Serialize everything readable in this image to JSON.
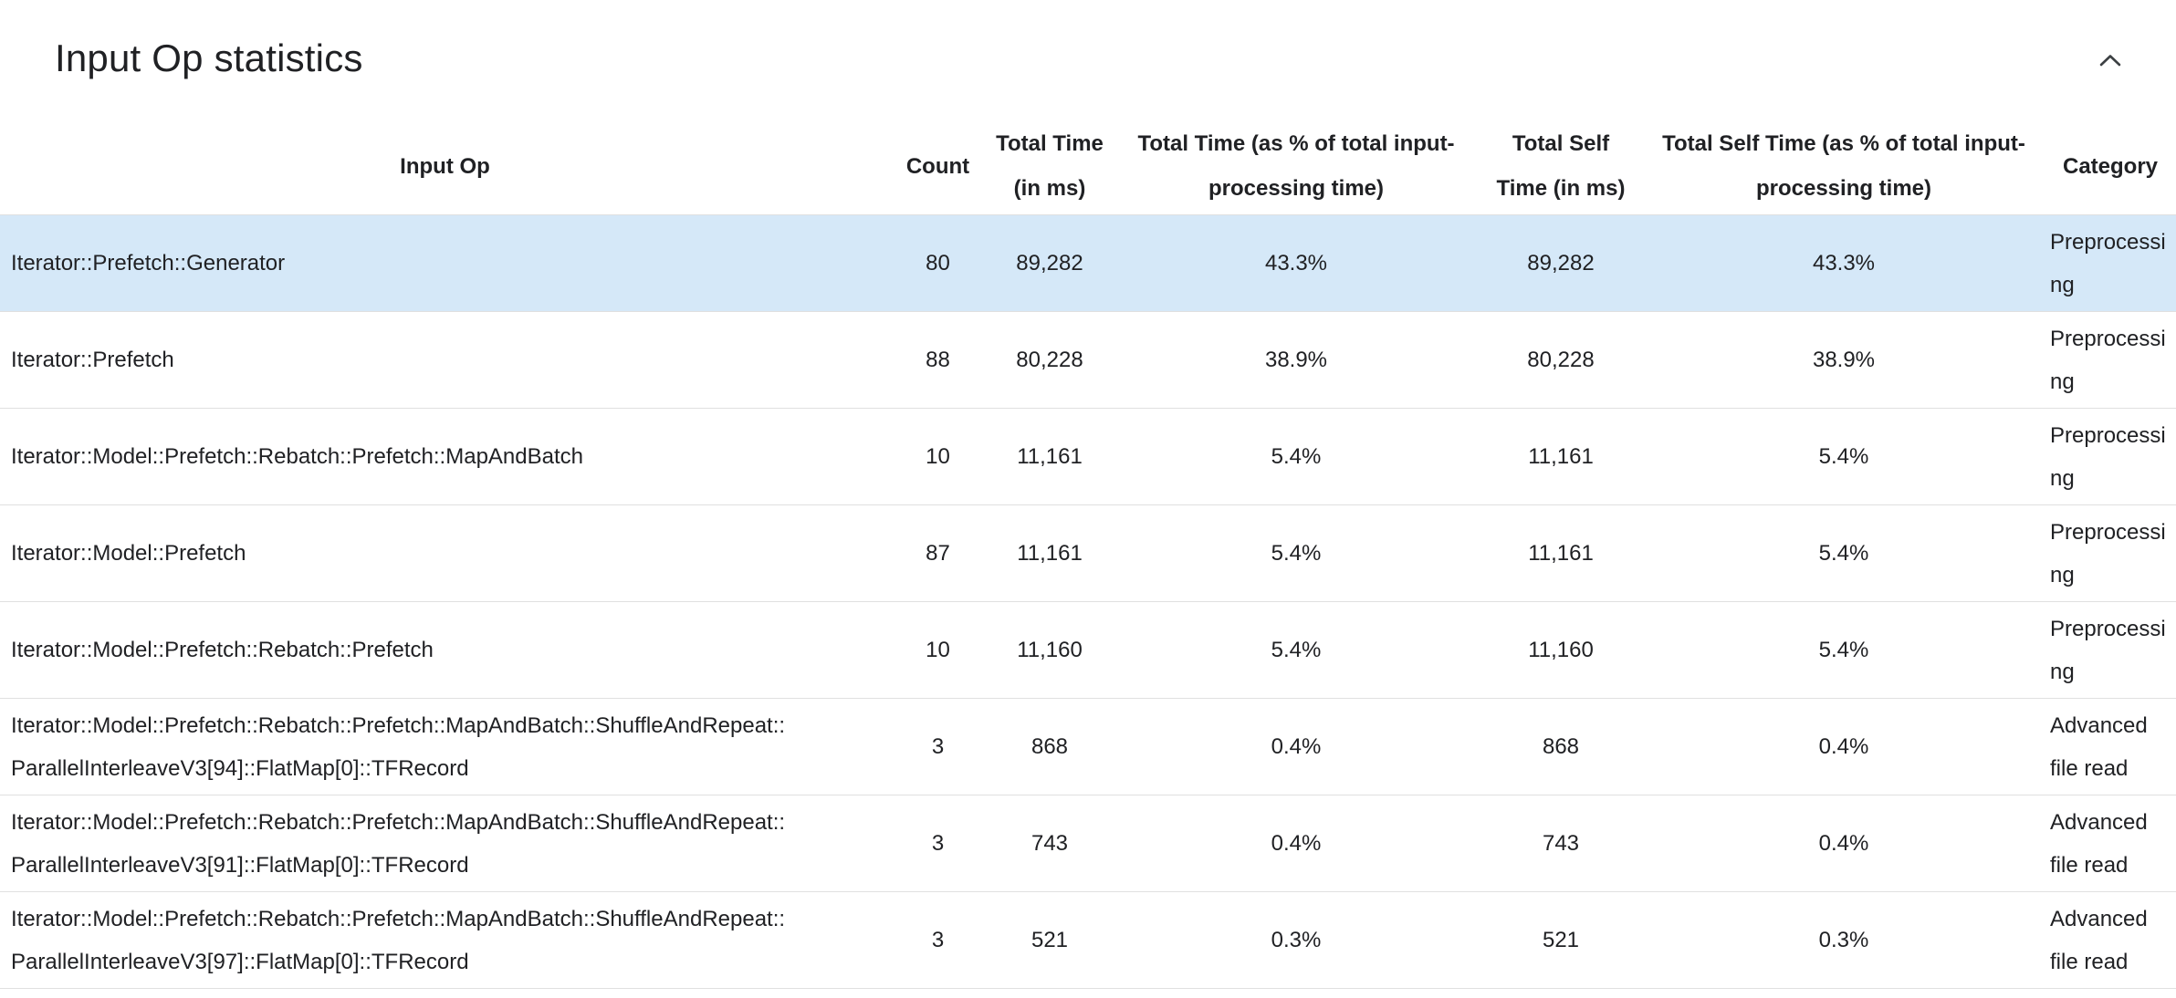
{
  "section": {
    "title": "Input Op statistics",
    "collapse_icon": "chevron-up"
  },
  "colors": {
    "highlight_row": "#d5e8f8",
    "row_divider": "#e0e0e0",
    "text": "#202124"
  },
  "table": {
    "columns": [
      {
        "key": "input_op",
        "label": "Input Op"
      },
      {
        "key": "count",
        "label": "Count"
      },
      {
        "key": "total_time",
        "label": "Total Time (in ms)"
      },
      {
        "key": "total_time_pct",
        "label": "Total Time (as % of total input-processing time)"
      },
      {
        "key": "total_self_time",
        "label": "Total Self Time (in ms)"
      },
      {
        "key": "total_self_time_pct",
        "label": "Total Self Time (as % of total input-processing time)"
      },
      {
        "key": "category",
        "label": "Category"
      }
    ],
    "rows": [
      {
        "highlighted": true,
        "cells": {
          "input_op": "Iterator::Prefetch::Generator",
          "count": "80",
          "total_time": "89,282",
          "total_time_pct": "43.3%",
          "total_self_time": "89,282",
          "total_self_time_pct": "43.3%",
          "category": "Preprocessing"
        }
      },
      {
        "highlighted": false,
        "cells": {
          "input_op": "Iterator::Prefetch",
          "count": "88",
          "total_time": "80,228",
          "total_time_pct": "38.9%",
          "total_self_time": "80,228",
          "total_self_time_pct": "38.9%",
          "category": "Preprocessing"
        }
      },
      {
        "highlighted": false,
        "cells": {
          "input_op": "Iterator::Model::Prefetch::Rebatch::Prefetch::MapAndBatch",
          "count": "10",
          "total_time": "11,161",
          "total_time_pct": "5.4%",
          "total_self_time": "11,161",
          "total_self_time_pct": "5.4%",
          "category": "Preprocessing"
        }
      },
      {
        "highlighted": false,
        "cells": {
          "input_op": "Iterator::Model::Prefetch",
          "count": "87",
          "total_time": "11,161",
          "total_time_pct": "5.4%",
          "total_self_time": "11,161",
          "total_self_time_pct": "5.4%",
          "category": "Preprocessing"
        }
      },
      {
        "highlighted": false,
        "cells": {
          "input_op": "Iterator::Model::Prefetch::Rebatch::Prefetch",
          "count": "10",
          "total_time": "11,160",
          "total_time_pct": "5.4%",
          "total_self_time": "11,160",
          "total_self_time_pct": "5.4%",
          "category": "Preprocessing"
        }
      },
      {
        "highlighted": false,
        "cells": {
          "input_op": "Iterator::Model::Prefetch::Rebatch::Prefetch::MapAndBatch::ShuffleAndRepeat::ParallelInterleaveV3[94]::FlatMap[0]::TFRecord",
          "count": "3",
          "total_time": "868",
          "total_time_pct": "0.4%",
          "total_self_time": "868",
          "total_self_time_pct": "0.4%",
          "category": "Advanced file read"
        }
      },
      {
        "highlighted": false,
        "cells": {
          "input_op": "Iterator::Model::Prefetch::Rebatch::Prefetch::MapAndBatch::ShuffleAndRepeat::ParallelInterleaveV3[91]::FlatMap[0]::TFRecord",
          "count": "3",
          "total_time": "743",
          "total_time_pct": "0.4%",
          "total_self_time": "743",
          "total_self_time_pct": "0.4%",
          "category": "Advanced file read"
        }
      },
      {
        "highlighted": false,
        "cells": {
          "input_op": "Iterator::Model::Prefetch::Rebatch::Prefetch::MapAndBatch::ShuffleAndRepeat::ParallelInterleaveV3[97]::FlatMap[0]::TFRecord",
          "count": "3",
          "total_time": "521",
          "total_time_pct": "0.3%",
          "total_self_time": "521",
          "total_self_time_pct": "0.3%",
          "category": "Advanced file read"
        }
      }
    ]
  }
}
